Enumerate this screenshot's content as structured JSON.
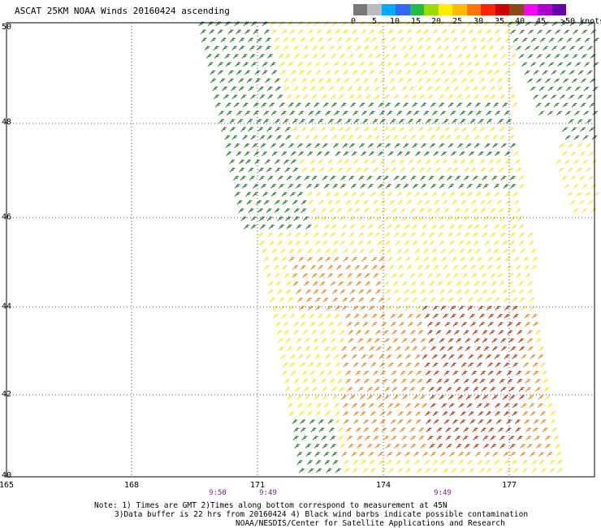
{
  "title": "ASCAT 25KM NOAA Winds 20160424 ascending",
  "legend": {
    "colors": [
      "#777777",
      "#bbbbbb",
      "#00aaff",
      "#3366ff",
      "#22bb44",
      "#99dd00",
      "#ffee00",
      "#ffbb00",
      "#ff7700",
      "#ff2200",
      "#cc0000",
      "#8a4a1a",
      "#ff00ff",
      "#aa00cc",
      "#6600aa"
    ],
    "labels": [
      "0",
      "5",
      "10",
      "15",
      "20",
      "25",
      "30",
      "35",
      "40",
      "45",
      ">50 knots"
    ]
  },
  "map": {
    "lat_labels": [
      "50",
      "48",
      "46",
      "44",
      "42",
      "40"
    ],
    "lon_labels": [
      "165",
      "168",
      "171",
      "174",
      "177"
    ],
    "times": [
      "9:50",
      "9:49",
      "9:49"
    ],
    "barb_colors": {
      "low": "#1a8a1a",
      "mid": "#ffee00",
      "high": "#ff8800",
      "highest": "#cc3300"
    }
  },
  "notes": {
    "line1": "Note: 1) Times are GMT 2)Times along bottom correspond to measurement at 45N",
    "line2": "3)Data buffer is 22 hrs from 20160424 4) Black wind barbs indicate possible contamination",
    "line3": "NOAA/NESDIS/Center for Satellite Applications and Research"
  }
}
